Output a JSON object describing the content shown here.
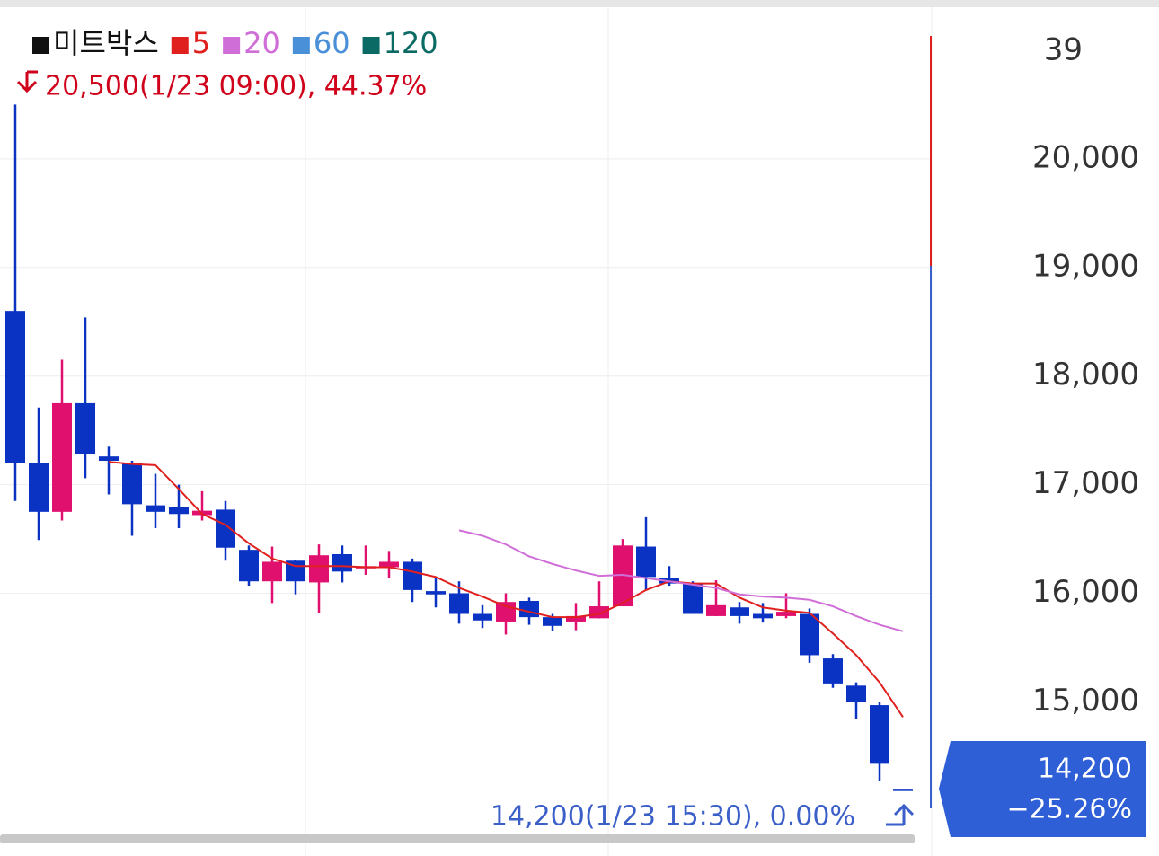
{
  "chart_data": {
    "type": "candlestick",
    "corner_label": "39",
    "legend": [
      {
        "name": "미트박스",
        "color": "#111111"
      },
      {
        "name": "5",
        "color": "#e0201e"
      },
      {
        "name": "20",
        "color": "#d06ed8"
      },
      {
        "name": "60",
        "color": "#4a90d9"
      },
      {
        "name": "120",
        "color": "#0b6b64"
      }
    ],
    "high_annotation": "20,500(1/23 09:00), 44.37%",
    "low_annotation": "14,200(1/23 15:30), 0.00%",
    "current_price": "14,200",
    "current_change": "−25.26%",
    "up_color": "#e0106f",
    "down_color": "#0a33c4",
    "ylim": [
      13730,
      21380
    ],
    "yticks": [
      {
        "value": 15000,
        "label": "15,000"
      },
      {
        "value": 16000,
        "label": "16,000"
      },
      {
        "value": 17000,
        "label": "17,000"
      },
      {
        "value": 18000,
        "label": "18,000"
      },
      {
        "value": 19000,
        "label": "19,000"
      },
      {
        "value": 20000,
        "label": "20,000"
      }
    ],
    "grid": true,
    "categories": [
      null,
      null,
      null,
      null,
      null,
      null,
      null,
      null,
      null,
      null,
      null,
      null,
      null,
      null,
      null,
      null,
      null,
      null,
      null,
      null,
      null,
      null,
      null,
      null,
      null,
      null,
      null,
      null,
      null,
      null,
      null,
      null,
      null,
      null,
      null,
      null,
      null,
      null,
      null
    ],
    "open": [
      18600,
      17200,
      16750,
      17750,
      17260,
      17200,
      16810,
      16790,
      16720,
      16770,
      16400,
      16110,
      16300,
      16100,
      16360,
      16230,
      16240,
      16290,
      16020,
      16000,
      15810,
      15740,
      15930,
      15780,
      15740,
      15770,
      15880,
      16430,
      16140,
      16090,
      15790,
      15870,
      15810,
      15790,
      15810,
      15400,
      15150,
      14970,
      14200
    ],
    "high": [
      20500,
      17710,
      18150,
      18540,
      17350,
      17220,
      17100,
      17000,
      16940,
      16850,
      16440,
      16430,
      16310,
      16450,
      16440,
      16440,
      16390,
      16320,
      16150,
      16110,
      15890,
      16000,
      15960,
      15810,
      15910,
      16110,
      16500,
      16700,
      16250,
      16110,
      16120,
      15920,
      15910,
      16000,
      15860,
      15440,
      15180,
      15000,
      14200
    ],
    "low": [
      16850,
      16490,
      16670,
      17060,
      16910,
      16530,
      16600,
      16600,
      16670,
      16300,
      16070,
      15910,
      15990,
      15820,
      16100,
      16170,
      16140,
      15920,
      15870,
      15720,
      15680,
      15620,
      15710,
      15650,
      15660,
      15770,
      15880,
      16030,
      16070,
      15810,
      15790,
      15720,
      15730,
      15770,
      15360,
      15130,
      14840,
      14270,
      14200
    ],
    "close": [
      17200,
      16750,
      17750,
      17280,
      17220,
      16820,
      16750,
      16730,
      16760,
      16420,
      16110,
      16290,
      16110,
      16350,
      16200,
      16250,
      16290,
      16030,
      15990,
      15810,
      15750,
      15920,
      15780,
      15700,
      15790,
      15880,
      16440,
      16150,
      16090,
      15810,
      15890,
      15790,
      15770,
      15830,
      15430,
      15170,
      15000,
      14430,
      14200
    ],
    "series": [
      {
        "name": "5",
        "color": "#e0201e",
        "values": [
          null,
          null,
          null,
          null,
          17210,
          17190,
          17180,
          16960,
          16730,
          16630,
          16460,
          16320,
          16250,
          16250,
          16250,
          16240,
          16240,
          16200,
          16150,
          16050,
          15970,
          15880,
          15830,
          15780,
          15780,
          15810,
          15910,
          16030,
          16110,
          16090,
          16090,
          15960,
          15870,
          15840,
          15820,
          15630,
          15430,
          15180,
          14860
        ]
      },
      {
        "name": "20",
        "color": "#d06ed8",
        "values": [
          null,
          null,
          null,
          null,
          null,
          null,
          null,
          null,
          null,
          null,
          null,
          null,
          null,
          null,
          null,
          null,
          null,
          null,
          null,
          16580,
          16530,
          16450,
          16340,
          16270,
          16210,
          16160,
          16170,
          16140,
          16110,
          16080,
          16050,
          15990,
          15970,
          15960,
          15940,
          15880,
          15790,
          15710,
          15650
        ]
      }
    ]
  }
}
